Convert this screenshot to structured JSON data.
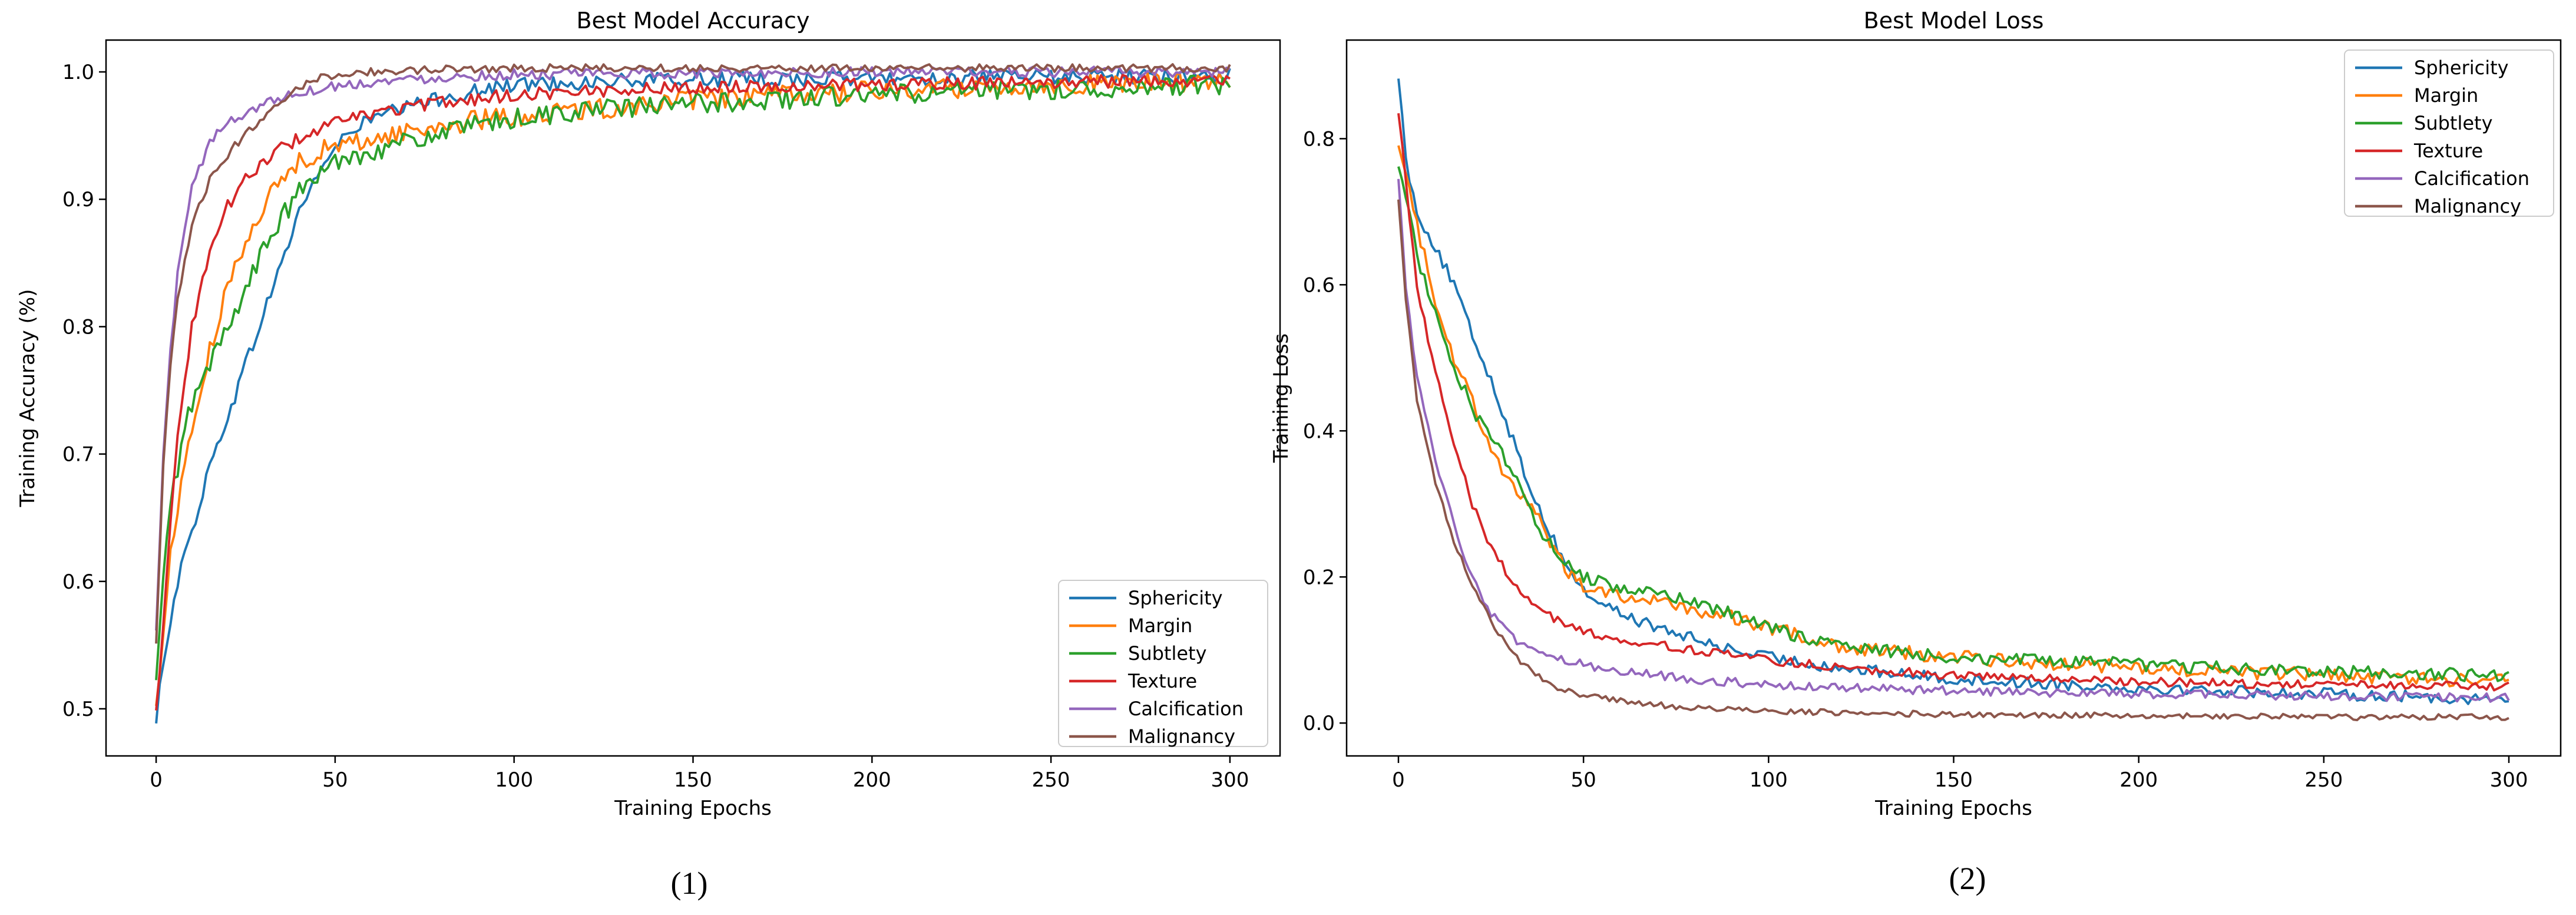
{
  "figure": {
    "captions": [
      "(1)",
      "(2)"
    ]
  },
  "chart_data": [
    {
      "type": "line",
      "title": "Best Model Accuracy",
      "xlabel": "Training Epochs",
      "ylabel": "Training Accuracy (%)",
      "xlim": [
        -14,
        314
      ],
      "ylim": [
        0.463,
        1.025
      ],
      "xticks": [
        0,
        50,
        100,
        150,
        200,
        250,
        300
      ],
      "yticks": [
        0.5,
        0.6,
        0.7,
        0.8,
        0.9,
        1.0
      ],
      "ytick_labels": [
        "0.5",
        "0.6",
        "0.7",
        "0.8",
        "0.9",
        "1.0"
      ],
      "legend_position": "lower-right",
      "series": [
        {
          "name": "Sphericity",
          "color": "#1f77b4",
          "x": [
            0,
            2,
            4,
            6,
            8,
            10,
            15,
            20,
            25,
            30,
            35,
            40,
            45,
            50,
            55,
            60,
            70,
            80,
            90,
            100,
            120,
            150,
            200,
            250,
            300
          ],
          "y": [
            0.487,
            0.54,
            0.57,
            0.6,
            0.62,
            0.64,
            0.69,
            0.73,
            0.77,
            0.81,
            0.85,
            0.89,
            0.92,
            0.94,
            0.955,
            0.963,
            0.972,
            0.98,
            0.985,
            0.99,
            0.992,
            0.994,
            0.995,
            0.996,
            0.997
          ],
          "noise": 0.006
        },
        {
          "name": "Margin",
          "color": "#ff7f0e",
          "x": [
            0,
            2,
            4,
            6,
            8,
            10,
            15,
            20,
            25,
            30,
            35,
            40,
            45,
            50,
            60,
            70,
            80,
            90,
            100,
            120,
            150,
            200,
            250,
            300
          ],
          "y": [
            0.5,
            0.56,
            0.62,
            0.66,
            0.69,
            0.72,
            0.78,
            0.83,
            0.87,
            0.895,
            0.915,
            0.93,
            0.937,
            0.941,
            0.947,
            0.953,
            0.958,
            0.962,
            0.965,
            0.97,
            0.978,
            0.985,
            0.99,
            0.993
          ],
          "noise": 0.008
        },
        {
          "name": "Subtlety",
          "color": "#2ca02c",
          "x": [
            0,
            2,
            4,
            6,
            8,
            10,
            15,
            20,
            25,
            30,
            35,
            40,
            45,
            50,
            60,
            70,
            80,
            90,
            100,
            120,
            150,
            200,
            250,
            300
          ],
          "y": [
            0.52,
            0.6,
            0.66,
            0.69,
            0.72,
            0.74,
            0.77,
            0.8,
            0.83,
            0.86,
            0.885,
            0.905,
            0.918,
            0.93,
            0.938,
            0.945,
            0.952,
            0.958,
            0.963,
            0.97,
            0.975,
            0.982,
            0.986,
            0.99
          ],
          "noise": 0.008
        },
        {
          "name": "Texture",
          "color": "#d62728",
          "x": [
            0,
            2,
            4,
            6,
            8,
            10,
            15,
            20,
            25,
            30,
            35,
            40,
            50,
            60,
            70,
            80,
            100,
            120,
            150,
            200,
            250,
            300
          ],
          "y": [
            0.497,
            0.57,
            0.65,
            0.71,
            0.76,
            0.8,
            0.86,
            0.895,
            0.915,
            0.93,
            0.94,
            0.948,
            0.96,
            0.967,
            0.972,
            0.976,
            0.982,
            0.985,
            0.988,
            0.99,
            0.992,
            0.994
          ],
          "noise": 0.005
        },
        {
          "name": "Calcification",
          "color": "#9467bd",
          "x": [
            0,
            2,
            4,
            6,
            8,
            10,
            15,
            20,
            25,
            30,
            35,
            40,
            50,
            60,
            70,
            80,
            100,
            150,
            200,
            250,
            300
          ],
          "y": [
            0.56,
            0.7,
            0.78,
            0.84,
            0.88,
            0.91,
            0.945,
            0.96,
            0.968,
            0.975,
            0.98,
            0.984,
            0.989,
            0.992,
            0.994,
            0.996,
            0.998,
            0.999,
            1.0,
            1.0,
            1.0
          ],
          "noise": 0.004
        },
        {
          "name": "Malignancy",
          "color": "#8c564b",
          "x": [
            0,
            2,
            4,
            6,
            8,
            10,
            15,
            20,
            25,
            30,
            35,
            40,
            45,
            50,
            60,
            80,
            100,
            150,
            200,
            250,
            300
          ],
          "y": [
            0.55,
            0.69,
            0.77,
            0.82,
            0.85,
            0.88,
            0.915,
            0.935,
            0.952,
            0.965,
            0.978,
            0.988,
            0.995,
            0.998,
            1.0,
            1.002,
            1.003,
            1.003,
            1.003,
            1.003,
            1.003
          ],
          "noise": 0.003
        }
      ]
    },
    {
      "type": "line",
      "title": "Best Model Loss",
      "xlabel": "Training Epochs",
      "ylabel": "Training Loss",
      "xlim": [
        -14,
        314
      ],
      "ylim": [
        -0.045,
        0.935
      ],
      "xticks": [
        0,
        50,
        100,
        150,
        200,
        250,
        300
      ],
      "yticks": [
        0.0,
        0.2,
        0.4,
        0.6,
        0.8
      ],
      "ytick_labels": [
        "0.0",
        "0.2",
        "0.4",
        "0.6",
        "0.8"
      ],
      "legend_position": "upper-right",
      "series": [
        {
          "name": "Sphericity",
          "color": "#1f77b4",
          "x": [
            0,
            2,
            5,
            10,
            15,
            20,
            25,
            30,
            35,
            40,
            45,
            50,
            60,
            70,
            80,
            90,
            100,
            120,
            150,
            200,
            250,
            300
          ],
          "y": [
            0.89,
            0.77,
            0.7,
            0.65,
            0.6,
            0.53,
            0.47,
            0.4,
            0.33,
            0.27,
            0.22,
            0.18,
            0.15,
            0.13,
            0.115,
            0.1,
            0.09,
            0.075,
            0.06,
            0.048,
            0.04,
            0.032
          ],
          "noise": 0.008
        },
        {
          "name": "Margin",
          "color": "#ff7f0e",
          "x": [
            0,
            2,
            5,
            10,
            15,
            20,
            25,
            30,
            35,
            40,
            45,
            50,
            60,
            70,
            80,
            90,
            100,
            120,
            150,
            200,
            250,
            300
          ],
          "y": [
            0.8,
            0.76,
            0.68,
            0.58,
            0.5,
            0.44,
            0.38,
            0.33,
            0.3,
            0.26,
            0.21,
            0.19,
            0.175,
            0.165,
            0.155,
            0.145,
            0.13,
            0.105,
            0.09,
            0.075,
            0.065,
            0.058
          ],
          "noise": 0.01
        },
        {
          "name": "Subtlety",
          "color": "#2ca02c",
          "x": [
            0,
            2,
            5,
            10,
            15,
            20,
            25,
            30,
            35,
            40,
            45,
            50,
            60,
            70,
            80,
            90,
            100,
            120,
            150,
            200,
            250,
            300
          ],
          "y": [
            0.77,
            0.72,
            0.64,
            0.56,
            0.49,
            0.43,
            0.39,
            0.35,
            0.3,
            0.25,
            0.22,
            0.2,
            0.185,
            0.175,
            0.165,
            0.15,
            0.13,
            0.105,
            0.09,
            0.08,
            0.07,
            0.065
          ],
          "noise": 0.009
        },
        {
          "name": "Texture",
          "color": "#d62728",
          "x": [
            0,
            2,
            5,
            10,
            15,
            20,
            25,
            30,
            35,
            40,
            45,
            50,
            60,
            70,
            80,
            90,
            100,
            120,
            150,
            200,
            250,
            300
          ],
          "y": [
            0.84,
            0.74,
            0.6,
            0.48,
            0.38,
            0.3,
            0.24,
            0.2,
            0.17,
            0.15,
            0.135,
            0.125,
            0.115,
            0.107,
            0.1,
            0.093,
            0.086,
            0.076,
            0.065,
            0.057,
            0.052,
            0.05
          ],
          "noise": 0.006
        },
        {
          "name": "Calcification",
          "color": "#9467bd",
          "x": [
            0,
            2,
            5,
            10,
            15,
            20,
            25,
            30,
            35,
            40,
            45,
            50,
            60,
            70,
            80,
            90,
            100,
            120,
            150,
            200,
            250,
            300
          ],
          "y": [
            0.75,
            0.6,
            0.47,
            0.36,
            0.27,
            0.2,
            0.15,
            0.12,
            0.1,
            0.09,
            0.085,
            0.08,
            0.072,
            0.066,
            0.06,
            0.056,
            0.052,
            0.048,
            0.044,
            0.04,
            0.037,
            0.035
          ],
          "noise": 0.006
        },
        {
          "name": "Malignancy",
          "color": "#8c564b",
          "x": [
            0,
            2,
            5,
            10,
            15,
            20,
            25,
            30,
            35,
            40,
            45,
            50,
            60,
            70,
            80,
            100,
            150,
            200,
            250,
            300
          ],
          "y": [
            0.72,
            0.58,
            0.44,
            0.33,
            0.25,
            0.19,
            0.14,
            0.1,
            0.075,
            0.055,
            0.045,
            0.038,
            0.03,
            0.025,
            0.02,
            0.016,
            0.012,
            0.01,
            0.008,
            0.008
          ],
          "noise": 0.004
        }
      ]
    }
  ]
}
